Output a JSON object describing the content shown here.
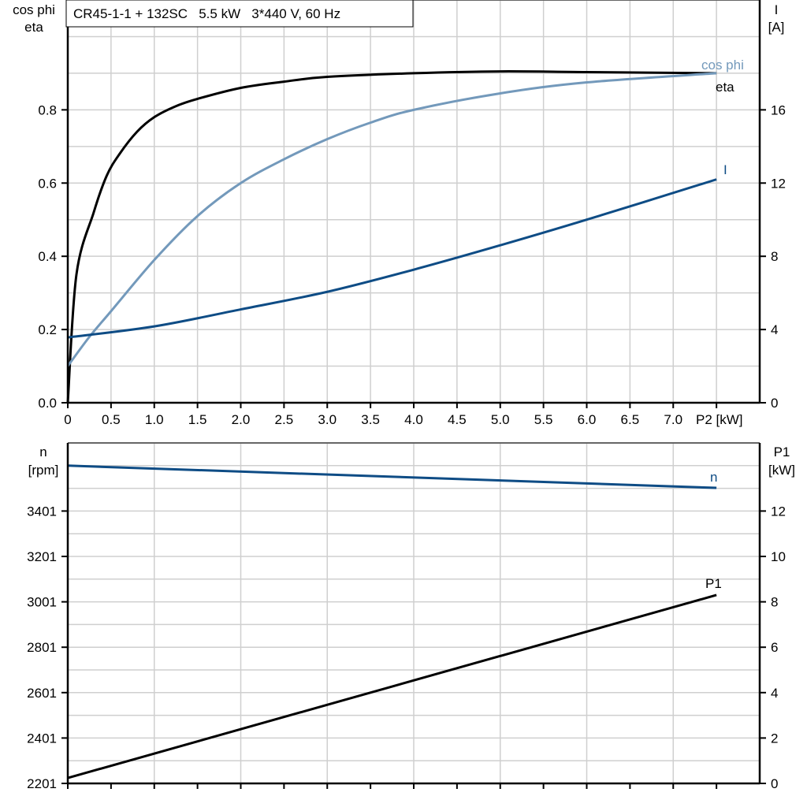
{
  "chart_data": [
    {
      "type": "line",
      "title": "CR45-1-1 + 132SC   5.5 kW   3*440 V, 60 Hz",
      "xlabel": "P2 [kW]",
      "xlim": [
        0,
        8
      ],
      "x_ticks": [
        "0",
        "0.5",
        "1.0",
        "1.5",
        "2.0",
        "2.5",
        "3.0",
        "3.5",
        "4.0",
        "4.5",
        "5.0",
        "5.5",
        "6.0",
        "6.5",
        "7.0"
      ],
      "ylabel_left": [
        "cos phi",
        "eta"
      ],
      "ylim_left": [
        0,
        1.1
      ],
      "y_ticks_left": [
        "0.0",
        "0.2",
        "0.4",
        "0.6",
        "0.8"
      ],
      "ylabel_right": [
        "I",
        "[A]"
      ],
      "ylim_right": [
        0,
        22
      ],
      "y_ticks_right": [
        "0",
        "4",
        "8",
        "12",
        "16"
      ],
      "grid": true,
      "series": [
        {
          "name": "eta",
          "axis": "left",
          "color": "#000000",
          "x": [
            0,
            0.1,
            0.3,
            0.45,
            0.6,
            0.8,
            1.0,
            1.25,
            1.5,
            2.0,
            2.5,
            3.0,
            4.0,
            5.0,
            6.0,
            7.5
          ],
          "y": [
            0,
            0.35,
            0.52,
            0.62,
            0.68,
            0.74,
            0.78,
            0.81,
            0.83,
            0.86,
            0.877,
            0.89,
            0.9,
            0.905,
            0.903,
            0.9
          ]
        },
        {
          "name": "cos phi",
          "axis": "left",
          "color": "#7399bb",
          "x": [
            0,
            0.25,
            0.5,
            1.0,
            1.5,
            2.0,
            2.5,
            3.0,
            3.5,
            4.0,
            5.0,
            6.0,
            7.5
          ],
          "y": [
            0.1,
            0.18,
            0.25,
            0.39,
            0.51,
            0.6,
            0.665,
            0.72,
            0.765,
            0.8,
            0.845,
            0.875,
            0.9
          ]
        },
        {
          "name": "I",
          "axis": "right",
          "color": "#0e4c85",
          "x": [
            0,
            1.0,
            2.0,
            3.0,
            4.0,
            5.0,
            6.0,
            7.5
          ],
          "y": [
            3.57,
            4.17,
            5.1,
            6.06,
            7.27,
            8.6,
            10.0,
            12.2
          ]
        }
      ]
    },
    {
      "type": "line",
      "xlim": [
        0,
        8
      ],
      "ylabel_left": [
        "n",
        "[rpm]"
      ],
      "ylim_left": [
        2201,
        3701
      ],
      "y_ticks_left": [
        "2201",
        "2401",
        "2601",
        "2801",
        "3001",
        "3201",
        "3401"
      ],
      "ylabel_right": [
        "P1",
        "[kW]"
      ],
      "ylim_right": [
        0,
        15
      ],
      "y_ticks_right": [
        "0",
        "2",
        "4",
        "6",
        "8",
        "10",
        "12"
      ],
      "grid": true,
      "series": [
        {
          "name": "n",
          "axis": "left",
          "color": "#0e4c85",
          "x": [
            0,
            7.5
          ],
          "y": [
            3601,
            3503
          ]
        },
        {
          "name": "P1",
          "axis": "right",
          "color": "#000000",
          "x": [
            0,
            7.5
          ],
          "y": [
            0.24,
            8.3
          ]
        }
      ]
    }
  ]
}
